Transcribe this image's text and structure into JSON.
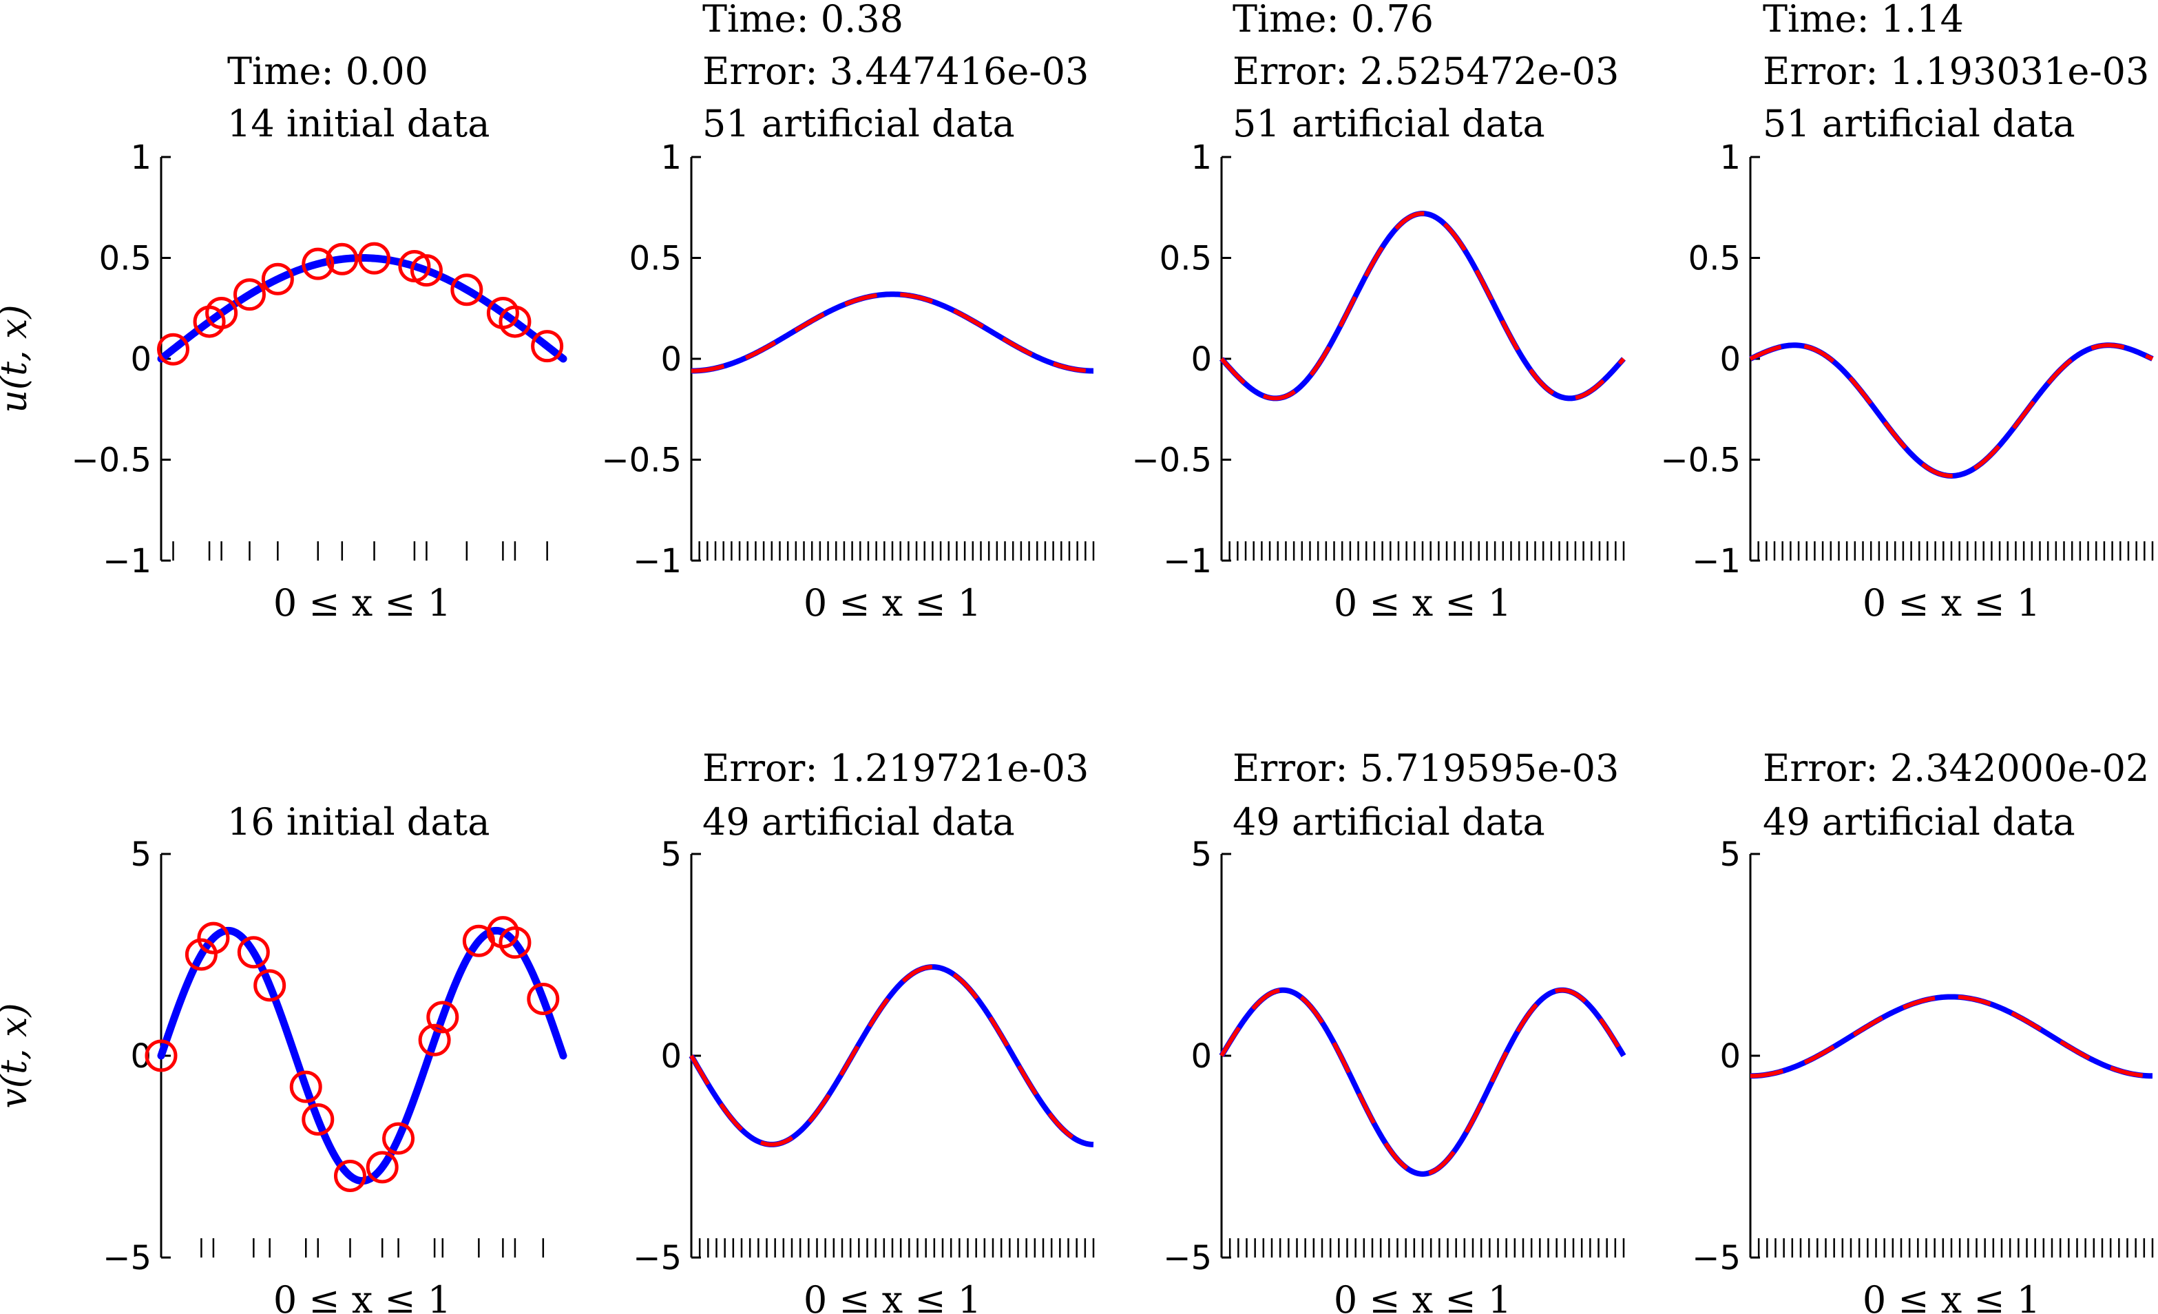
{
  "chart_data": [
    {
      "type": "line",
      "row": "u",
      "title": [
        "Time: 0.00",
        "14 initial data"
      ],
      "xlabel": "0 ≤ x ≤ 1",
      "ylabel": "u(t, x)",
      "xlim": [
        0,
        1
      ],
      "ylim": [
        -1,
        1
      ],
      "yticks": [
        1,
        0.5,
        0,
        -0.5,
        -1
      ],
      "ytick_labels": [
        "1",
        "0.5",
        "0",
        "−0.5",
        "−1"
      ],
      "curve": "0.5*sin(pi*x)",
      "style": "solid",
      "markers_x": [
        0.03,
        0.12,
        0.15,
        0.22,
        0.29,
        0.39,
        0.45,
        0.53,
        0.63,
        0.66,
        0.76,
        0.85,
        0.88,
        0.96
      ]
    },
    {
      "type": "line",
      "row": "u",
      "title": [
        "Time: 0.38",
        "Error: 3.447416e-03",
        "51 artificial data"
      ],
      "xlabel": "0 ≤ x ≤ 1",
      "xlim": [
        0,
        1
      ],
      "ylim": [
        -1,
        1
      ],
      "yticks": [
        1,
        0.5,
        0,
        -0.5,
        -1
      ],
      "ytick_labels": [
        "1",
        "0.5",
        "0",
        "−0.5",
        "−1"
      ],
      "curve": "0.13-0.19*cos(2*pi*x)",
      "style": "dashed",
      "rug_count": 51
    },
    {
      "type": "line",
      "row": "u",
      "title": [
        "Time: 0.76",
        "Error: 2.525472e-03",
        "51 artificial data"
      ],
      "xlabel": "0 ≤ x ≤ 1",
      "xlim": [
        0,
        1
      ],
      "ylim": [
        -1,
        1
      ],
      "yticks": [
        1,
        0.5,
        0,
        -0.5,
        -1
      ],
      "ytick_labels": [
        "1",
        "0.5",
        "0",
        "−0.5",
        "−1"
      ],
      "curve": "0.36*sin(pi*x)-0.36*sin(3*pi*x)",
      "style": "dashed",
      "rug_count": 51
    },
    {
      "type": "line",
      "row": "u",
      "title": [
        "Time: 1.14",
        "Error: 1.193031e-03",
        "51 artificial data"
      ],
      "xlabel": "0 ≤ x ≤ 1",
      "xlim": [
        0,
        1
      ],
      "ylim": [
        -1,
        1
      ],
      "yticks": [
        1,
        0.5,
        0,
        -0.5,
        -1
      ],
      "ytick_labels": [
        "1",
        "0.5",
        "0",
        "−0.5",
        "−1"
      ],
      "curve": "-0.36*sin(pi*x)+0.22*sin(3*pi*x)",
      "style": "dashed",
      "rug_count": 51
    },
    {
      "type": "line",
      "row": "v",
      "title": [
        "16 initial data"
      ],
      "xlabel": "0 ≤ x ≤ 1",
      "ylabel": "v(t, x)",
      "xlim": [
        0,
        1
      ],
      "ylim": [
        -5,
        5
      ],
      "yticks": [
        5,
        0,
        -5
      ],
      "ytick_labels": [
        "5",
        "0",
        "−5"
      ],
      "curve": "3.1*sin(3*pi*x)",
      "style": "solid",
      "markers_x": [
        0.0,
        0.1,
        0.13,
        0.23,
        0.27,
        0.36,
        0.39,
        0.47,
        0.55,
        0.59,
        0.68,
        0.7,
        0.79,
        0.85,
        0.88,
        0.95
      ]
    },
    {
      "type": "line",
      "row": "v",
      "title": [
        "Error: 1.219721e-03",
        "49 artificial data"
      ],
      "xlabel": "0 ≤ x ≤ 1",
      "xlim": [
        0,
        1
      ],
      "ylim": [
        -5,
        5
      ],
      "yticks": [
        5,
        0,
        -5
      ],
      "ytick_labels": [
        "5",
        "0",
        "−5"
      ],
      "curve": "-2.2*sin(2.5*pi*x)",
      "style": "dashed",
      "rug_count": 49
    },
    {
      "type": "line",
      "row": "v",
      "title": [
        "Error: 5.719595e-03",
        "49 artificial data"
      ],
      "xlabel": "0 ≤ x ≤ 1",
      "xlim": [
        0,
        1
      ],
      "ylim": [
        -5,
        5
      ],
      "yticks": [
        5,
        0,
        -5
      ],
      "ytick_labels": [
        "5",
        "0",
        "−5"
      ],
      "curve": "-0.88*sin(pi*x)+2.05*sin(3*pi*x)",
      "style": "dashed",
      "rug_count": 49
    },
    {
      "type": "line",
      "row": "v",
      "title": [
        "Error: 2.342000e-02",
        "49 artificial data"
      ],
      "xlabel": "0 ≤ x ≤ 1",
      "xlim": [
        0,
        1
      ],
      "ylim": [
        -5,
        5
      ],
      "yticks": [
        5,
        0,
        -5
      ],
      "ytick_labels": [
        "5",
        "0",
        "−5"
      ],
      "curve": "0.48-0.98*cos(2*pi*x)",
      "style": "dashed",
      "rug_count": 49
    }
  ],
  "colors": {
    "curve": "#0000ff",
    "dash_overlay": "#ff0000",
    "markers": "#ff0000",
    "axes": "#000000"
  }
}
